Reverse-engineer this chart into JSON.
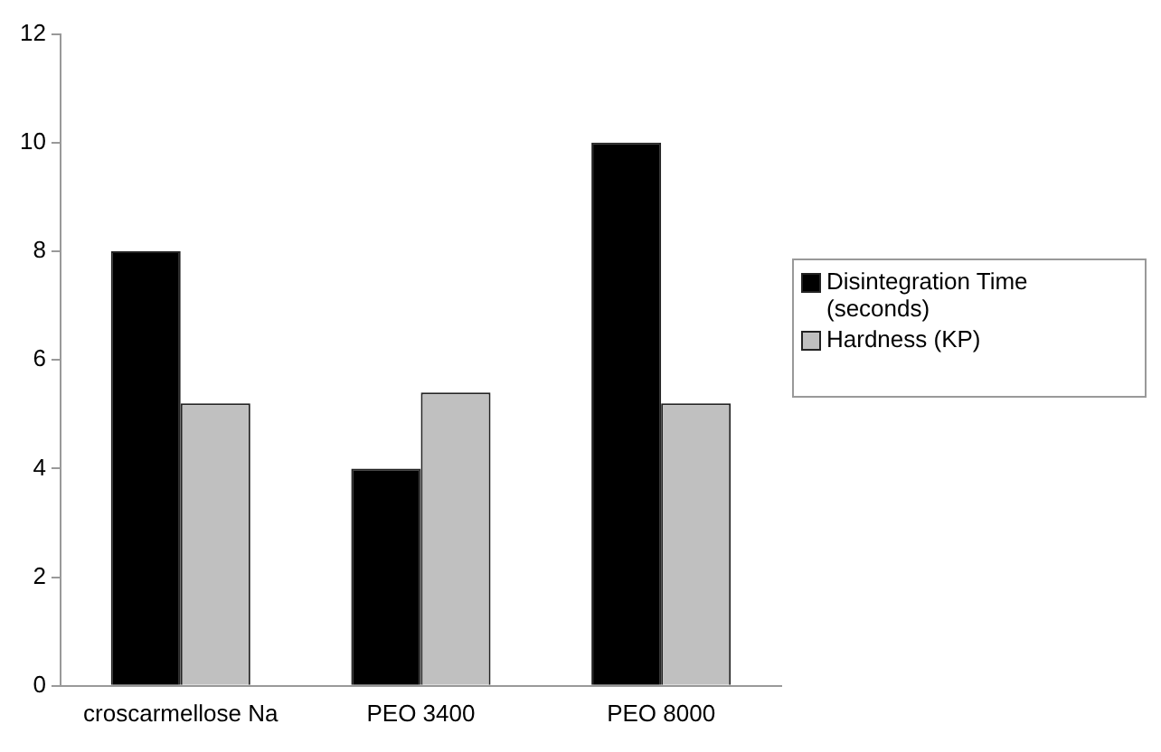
{
  "chart_data": {
    "type": "bar",
    "categories": [
      "croscarmellose Na",
      "PEO 3400",
      "PEO 8000"
    ],
    "series": [
      {
        "name": "Disintegration Time (seconds)",
        "color": "#000000",
        "values": [
          8,
          4,
          10
        ]
      },
      {
        "name": "Hardness (KP)",
        "color": "#c0c0c0",
        "values": [
          5.2,
          5.4,
          5.2
        ]
      }
    ],
    "ylim": [
      0,
      12
    ],
    "yticks": [
      0,
      2,
      4,
      6,
      8,
      10,
      12
    ],
    "grid": false,
    "legend": "right"
  }
}
